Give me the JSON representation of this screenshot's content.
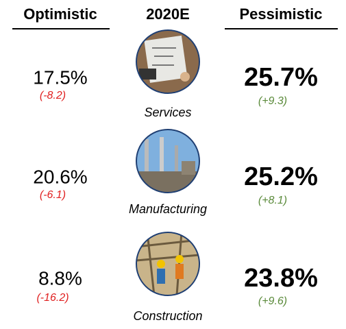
{
  "header": {
    "optimistic": "Optimistic",
    "scenario": "2020E",
    "pessimistic": "Pessimistic"
  },
  "rows": [
    {
      "sector": "Services",
      "optimistic": "17.5%",
      "optimistic_change": "(-8.2)",
      "pessimistic": "25.7%",
      "pessimistic_change": "(+9.3)"
    },
    {
      "sector": "Manufacturing",
      "optimistic": "20.6%",
      "optimistic_change": "(-6.1)",
      "pessimistic": "25.2%",
      "pessimistic_change": "(+8.1)"
    },
    {
      "sector": "Construction",
      "optimistic": "8.8%",
      "optimistic_change": "(-16.2)",
      "pessimistic": "23.8%",
      "pessimistic_change": "(+9.6)"
    }
  ]
}
